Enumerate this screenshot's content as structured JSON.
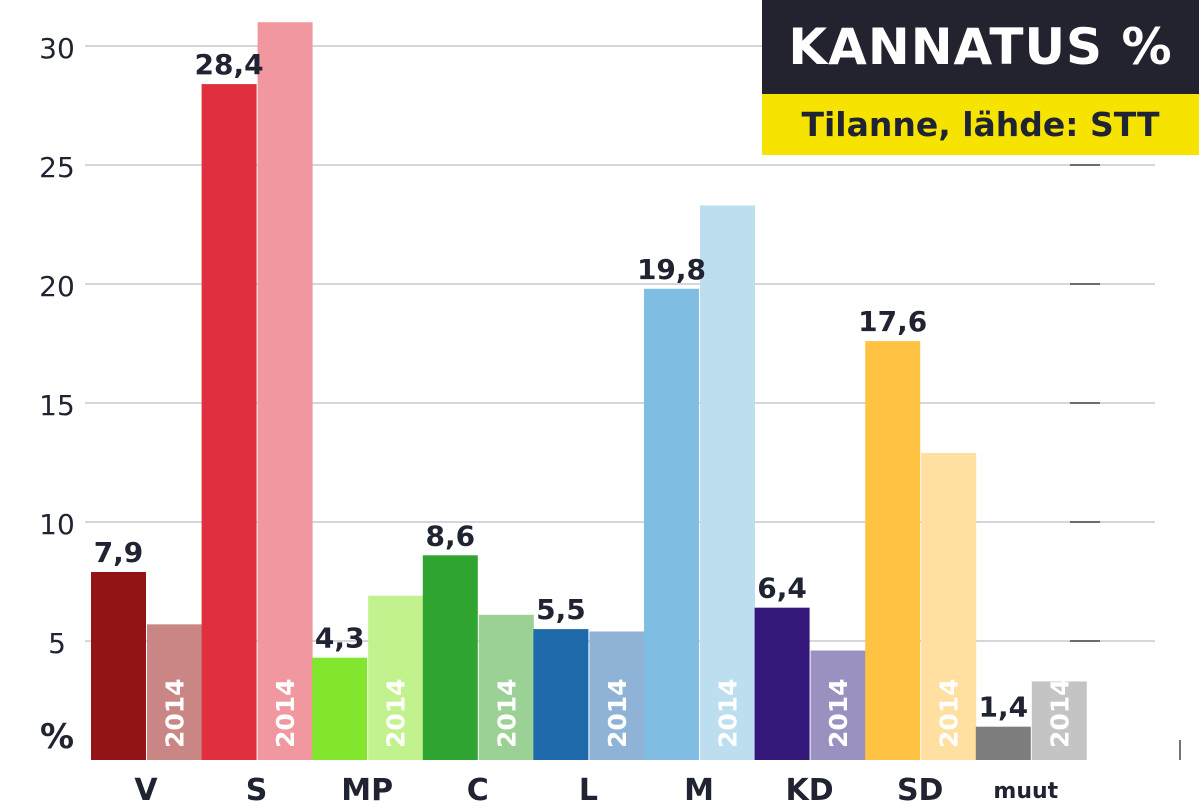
{
  "chart_data": {
    "type": "bar",
    "title": "KANNATUS %",
    "subtitle": "Tilanne, lähde: STT",
    "ylabel": "%",
    "ylim": [
      0,
      31.5
    ],
    "yticks": [
      5,
      10,
      15,
      20,
      25,
      30
    ],
    "grid": true,
    "categories": [
      "V",
      "S",
      "MP",
      "C",
      "L",
      "M",
      "KD",
      "SD",
      "muut"
    ],
    "series": [
      {
        "values": [
          7.9,
          28.4,
          4.3,
          8.6,
          5.5,
          19.8,
          6.4,
          17.6,
          1.4
        ],
        "value_labels": [
          "7,9",
          "28,4",
          "4,3",
          "8,6",
          "5,5",
          "19,8",
          "6,4",
          "17,6",
          "1,4"
        ],
        "colors": [
          "#921417",
          "#e03040",
          "#82e62e",
          "#30a430",
          "#1f6aab",
          "#7fbde2",
          "#35197a",
          "#ffc242",
          "#7d7d7d"
        ]
      },
      {
        "name": "2014",
        "values": [
          5.7,
          31.0,
          6.9,
          6.1,
          5.4,
          23.3,
          4.6,
          12.9,
          3.3
        ],
        "bar_label": "2014",
        "colors": [
          "#c98685",
          "#f0979f",
          "#c1f28d",
          "#9bd195",
          "#8fb3d7",
          "#bcdeef",
          "#9b91c0",
          "#ffe0a0",
          "#c4c4c4"
        ]
      }
    ]
  }
}
